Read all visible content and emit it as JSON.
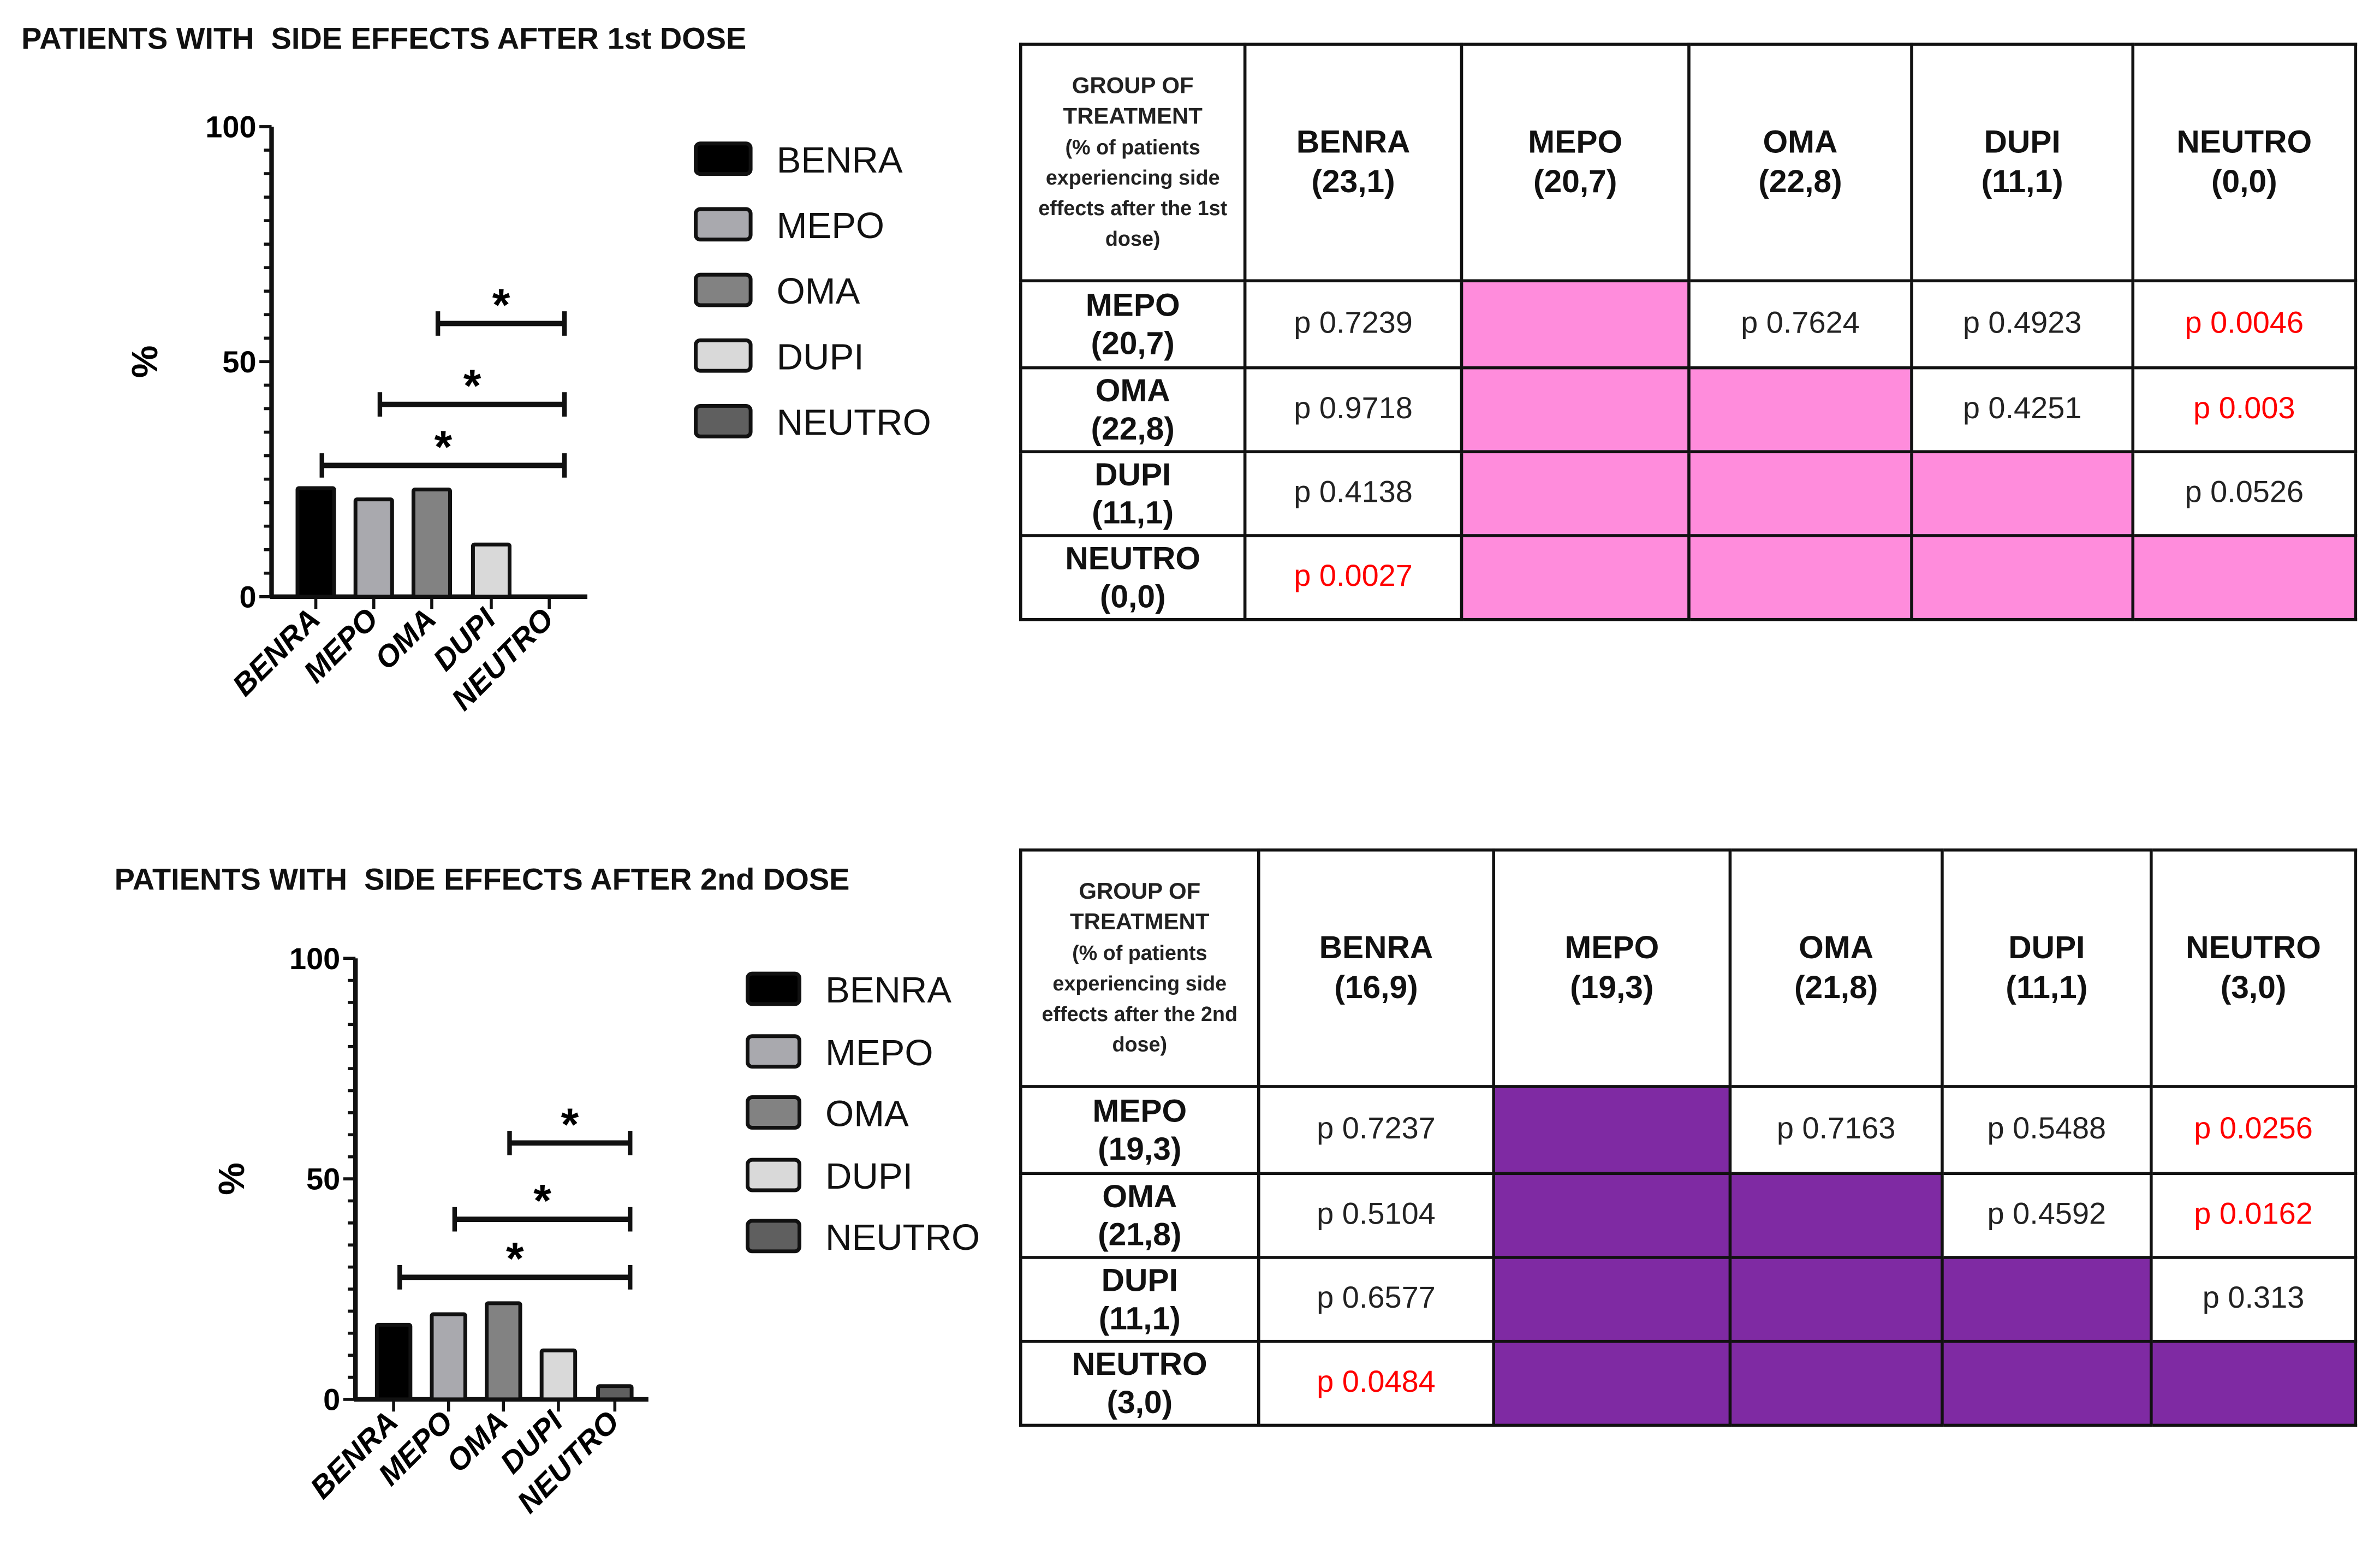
{
  "chart_data": [
    {
      "type": "bar",
      "title": "PATIENTS WITH  SIDE EFFECTS AFTER 1st DOSE",
      "ylabel": "%",
      "xlabel": "",
      "ylim": [
        0,
        100
      ],
      "yticks": [
        "0",
        "50",
        "100"
      ],
      "categories": [
        "BENRA",
        "MEPO",
        "OMA",
        "DUPI",
        "NEUTRO"
      ],
      "values": [
        23.1,
        20.7,
        22.8,
        11.1,
        0.0
      ],
      "colors": [
        "#000000",
        "#a9a9ae",
        "#828282",
        "#d9d9d9",
        "#5f5f5f"
      ],
      "legend": [
        "BENRA",
        "MEPO",
        "OMA",
        "DUPI",
        "NEUTRO"
      ],
      "legend_position": "right",
      "significance": [
        {
          "from": "OMA",
          "to": "NEUTRO",
          "label": "*"
        },
        {
          "from": "MEPO",
          "to": "NEUTRO",
          "label": "*"
        },
        {
          "from": "BENRA",
          "to": "NEUTRO",
          "label": "*"
        }
      ]
    },
    {
      "type": "bar",
      "title": "PATIENTS WITH  SIDE EFFECTS AFTER 2nd DOSE",
      "ylabel": "%",
      "xlabel": "",
      "ylim": [
        0,
        100
      ],
      "yticks": [
        "0",
        "50",
        "100"
      ],
      "categories": [
        "BENRA",
        "MEPO",
        "OMA",
        "DUPI",
        "NEUTRO"
      ],
      "values": [
        16.9,
        19.3,
        21.8,
        11.1,
        3.0
      ],
      "colors": [
        "#000000",
        "#a9a9ae",
        "#828282",
        "#d9d9d9",
        "#5f5f5f"
      ],
      "legend": [
        "BENRA",
        "MEPO",
        "OMA",
        "DUPI",
        "NEUTRO"
      ],
      "legend_position": "right",
      "significance": [
        {
          "from": "OMA",
          "to": "NEUTRO",
          "label": "*"
        },
        {
          "from": "MEPO",
          "to": "NEUTRO",
          "label": "*"
        },
        {
          "from": "BENRA",
          "to": "NEUTRO",
          "label": "*"
        }
      ]
    },
    {
      "type": "table",
      "corner": [
        "GROUP OF",
        "TREATMENT",
        "(% of patients",
        "experiencing side",
        "effects after the 1st",
        "dose)"
      ],
      "columns": [
        [
          "BENRA",
          "(23,1)"
        ],
        [
          "MEPO",
          "(20,7)"
        ],
        [
          "OMA",
          "(22,8)"
        ],
        [
          "DUPI",
          "(11,1)"
        ],
        [
          "NEUTRO",
          "(0,0)"
        ]
      ],
      "rows": [
        {
          "head": [
            "MEPO",
            "(20,7)"
          ],
          "cells": [
            {
              "t": "p 0.7239"
            },
            {
              "fill": true
            },
            {
              "t": "p 0.7624"
            },
            {
              "t": "p 0.4923"
            },
            {
              "t": "p 0.0046",
              "sig": true
            }
          ]
        },
        {
          "head": [
            "OMA",
            "(22,8)"
          ],
          "cells": [
            {
              "t": "p 0.9718"
            },
            {
              "fill": true
            },
            {
              "fill": true
            },
            {
              "t": "p 0.4251"
            },
            {
              "t": "p 0.003",
              "sig": true
            }
          ]
        },
        {
          "head": [
            "DUPI",
            "(11,1)"
          ],
          "cells": [
            {
              "t": "p 0.4138"
            },
            {
              "fill": true
            },
            {
              "fill": true
            },
            {
              "fill": true
            },
            {
              "t": "p 0.0526"
            }
          ]
        },
        {
          "head": [
            "NEUTRO",
            "(0,0)"
          ],
          "cells": [
            {
              "t": "p 0.0027",
              "sig": true
            },
            {
              "fill": true
            },
            {
              "fill": true
            },
            {
              "fill": true
            },
            {
              "fill": true
            }
          ]
        }
      ],
      "fill_color": "#ff8cdc"
    },
    {
      "type": "table",
      "corner": [
        "GROUP OF",
        "TREATMENT",
        "(% of patients",
        "experiencing side",
        "effects after the 2nd",
        "dose)"
      ],
      "columns": [
        [
          "BENRA",
          "(16,9)"
        ],
        [
          "MEPO",
          "(19,3)"
        ],
        [
          "OMA",
          "(21,8)"
        ],
        [
          "DUPI",
          "(11,1)"
        ],
        [
          "NEUTRO",
          "(3,0)"
        ]
      ],
      "rows": [
        {
          "head": [
            "MEPO",
            "(19,3)"
          ],
          "cells": [
            {
              "t": "p 0.7237"
            },
            {
              "fill": true
            },
            {
              "t": "p 0.7163"
            },
            {
              "t": "p 0.5488"
            },
            {
              "t": "p 0.0256",
              "sig": true
            }
          ]
        },
        {
          "head": [
            "OMA",
            "(21,8)"
          ],
          "cells": [
            {
              "t": "p 0.5104"
            },
            {
              "fill": true
            },
            {
              "fill": true
            },
            {
              "t": "p 0.4592"
            },
            {
              "t": "p 0.0162",
              "sig": true
            }
          ]
        },
        {
          "head": [
            "DUPI",
            "(11,1)"
          ],
          "cells": [
            {
              "t": "p 0.6577"
            },
            {
              "fill": true
            },
            {
              "fill": true
            },
            {
              "fill": true
            },
            {
              "t": "p 0.313"
            }
          ]
        },
        {
          "head": [
            "NEUTRO",
            "(3,0)"
          ],
          "cells": [
            {
              "t": "p 0.0484",
              "sig": true
            },
            {
              "fill": true
            },
            {
              "fill": true
            },
            {
              "fill": true
            },
            {
              "fill": true
            }
          ]
        }
      ],
      "fill_color": "#7f2aa3"
    }
  ]
}
